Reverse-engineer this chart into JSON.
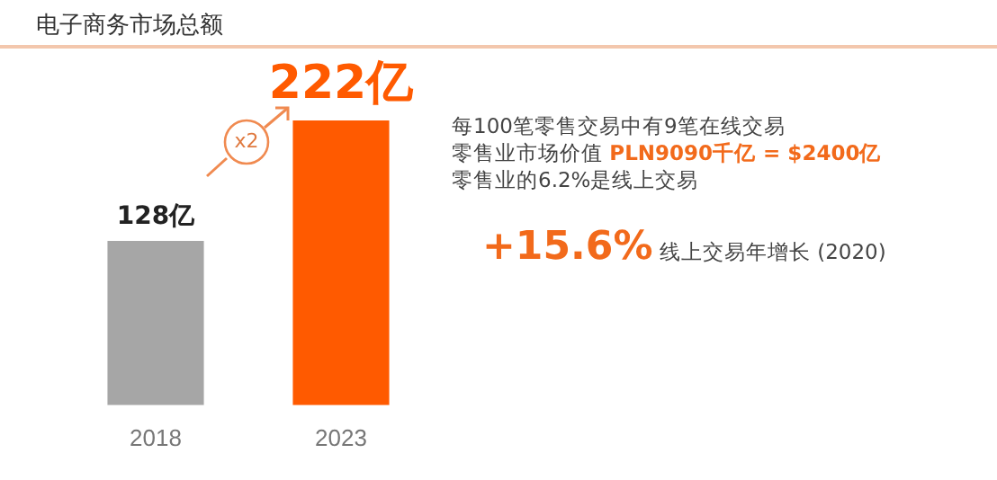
{
  "chart_data": {
    "type": "bar",
    "title": "电子商务市场总额",
    "categories": [
      "2018",
      "2023"
    ],
    "values": [
      128,
      222
    ],
    "colors": [
      "#a6a6a6",
      "#ff5a00"
    ],
    "value_labels": [
      "128亿",
      "222亿"
    ],
    "annotations": [
      "x2",
      "每100笔零售交易中有9笔在线交易",
      "零售业市场价值 PLN9090千亿 = $2400亿",
      "零售业的6.2%是线上交易",
      "+15.6% 线上交易年增长 (2020)"
    ],
    "legend": false,
    "grid": false
  }
}
